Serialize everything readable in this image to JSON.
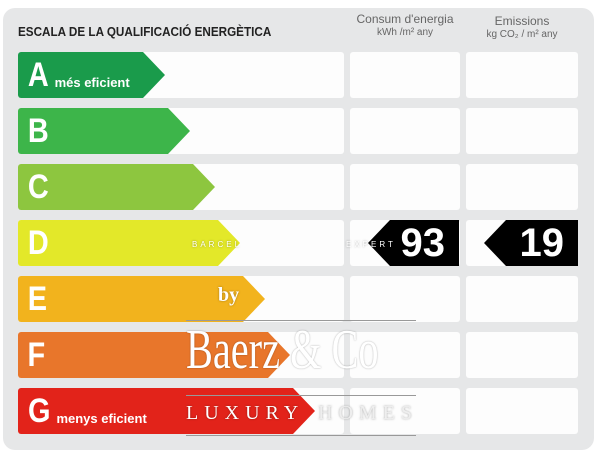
{
  "title": "ESCALA DE LA QUALIFICACIÓ ENERGÈTICA",
  "columns": [
    {
      "label": "Consum d'energia",
      "unit": "kWh /m² any"
    },
    {
      "label": "Emissions",
      "unit": "kg CO₂ / m² any"
    }
  ],
  "ratings": [
    {
      "letter": "A",
      "sub": "més eficient",
      "color": "#1a9b4b"
    },
    {
      "letter": "B",
      "sub": "",
      "color": "#3db54a"
    },
    {
      "letter": "C",
      "sub": "",
      "color": "#8dc63f"
    },
    {
      "letter": "D",
      "sub": "",
      "color": "#e3e829"
    },
    {
      "letter": "E",
      "sub": "",
      "color": "#f2b31d"
    },
    {
      "letter": "F",
      "sub": "",
      "color": "#e8762b"
    },
    {
      "letter": "G",
      "sub": "menys eficient",
      "color": "#e2231a"
    }
  ],
  "current_rating": "D",
  "energy_value": "93",
  "emissions_value": "19",
  "watermark": {
    "by": "by",
    "brand": "Baerz & Co",
    "tagline_left": "LUXURY",
    "tagline_right": "HOMES",
    "top_small_left": "BARCEL",
    "top_small_right": "EXPERT"
  }
}
